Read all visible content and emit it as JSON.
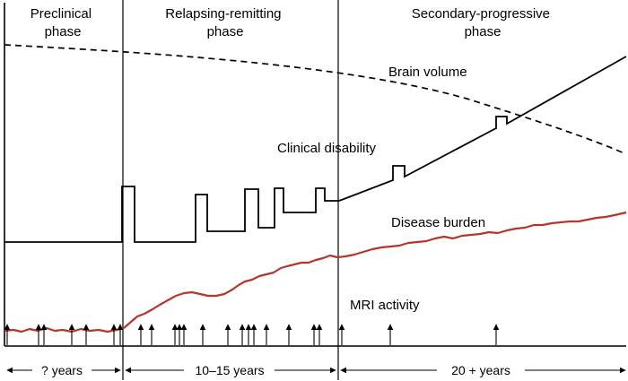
{
  "phases": {
    "preclinical": [
      "Preclinical",
      "phase"
    ],
    "relapsing": [
      "Relapsing-remitting",
      "phase"
    ],
    "secondary": [
      "Secondary-progressive",
      "phase"
    ]
  },
  "curves": {
    "brain_volume": "Brain volume",
    "clinical_disability": "Clinical disability",
    "disease_burden": "Disease burden",
    "mri_activity": "MRI activity"
  },
  "durations": {
    "preclinical": "? years",
    "relapsing": "10–15 years",
    "secondary": "20 + years"
  },
  "colors": {
    "disease_burden": "#b5362b",
    "lines": "#000000"
  }
}
